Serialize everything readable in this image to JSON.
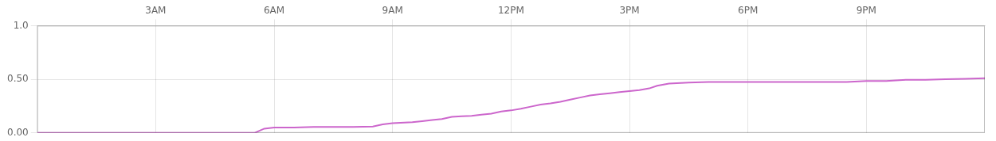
{
  "chart_data": {
    "type": "line",
    "x": [
      0,
      0.5,
      1.0,
      1.5,
      2.0,
      2.5,
      3.0,
      3.5,
      4.0,
      4.5,
      5.0,
      5.5,
      5.75,
      6.0,
      6.5,
      7.0,
      7.5,
      8.0,
      8.5,
      8.75,
      9.0,
      9.5,
      9.75,
      10.0,
      10.25,
      10.5,
      10.75,
      11.0,
      11.25,
      11.5,
      11.75,
      12.0,
      12.25,
      12.5,
      12.75,
      13.0,
      13.25,
      13.5,
      13.75,
      14.0,
      14.25,
      14.5,
      14.75,
      15.0,
      15.25,
      15.5,
      15.7,
      16.0,
      16.5,
      17.0,
      17.5,
      18.0,
      18.5,
      19.0,
      19.5,
      20.0,
      20.5,
      21.0,
      21.5,
      22.0,
      22.5,
      23.0,
      23.5,
      24.0
    ],
    "series": [
      {
        "color": "#cc66cc",
        "values": [
          0.0,
          0.0,
          0.0,
          0.0,
          0.0,
          0.0,
          0.0,
          0.0,
          0.0,
          0.0,
          0.0,
          0.0,
          0.04,
          0.05,
          0.05,
          0.055,
          0.055,
          0.055,
          0.06,
          0.08,
          0.09,
          0.1,
          0.11,
          0.12,
          0.13,
          0.15,
          0.155,
          0.16,
          0.17,
          0.18,
          0.2,
          0.21,
          0.225,
          0.245,
          0.265,
          0.275,
          0.29,
          0.31,
          0.33,
          0.35,
          0.36,
          0.37,
          0.38,
          0.39,
          0.4,
          0.415,
          0.44,
          0.46,
          0.47,
          0.475,
          0.475,
          0.475,
          0.475,
          0.475,
          0.475,
          0.475,
          0.475,
          0.485,
          0.485,
          0.495,
          0.495,
          0.5,
          0.505,
          0.51
        ]
      }
    ],
    "xlim": [
      0,
      24
    ],
    "xticks": [
      {
        "value": 3,
        "label": "3AM"
      },
      {
        "value": 6,
        "label": "6AM"
      },
      {
        "value": 9,
        "label": "9AM"
      },
      {
        "value": 12,
        "label": "12PM"
      },
      {
        "value": 15,
        "label": "3PM"
      },
      {
        "value": 18,
        "label": "6PM"
      },
      {
        "value": 21,
        "label": "9PM"
      }
    ],
    "ylim": [
      0.0,
      1.0
    ],
    "yticks": [
      {
        "value": 0.0,
        "label": "0.00"
      },
      {
        "value": 0.5,
        "label": "0.50"
      },
      {
        "value": 1.0,
        "label": "1.0"
      }
    ],
    "grid": true
  }
}
